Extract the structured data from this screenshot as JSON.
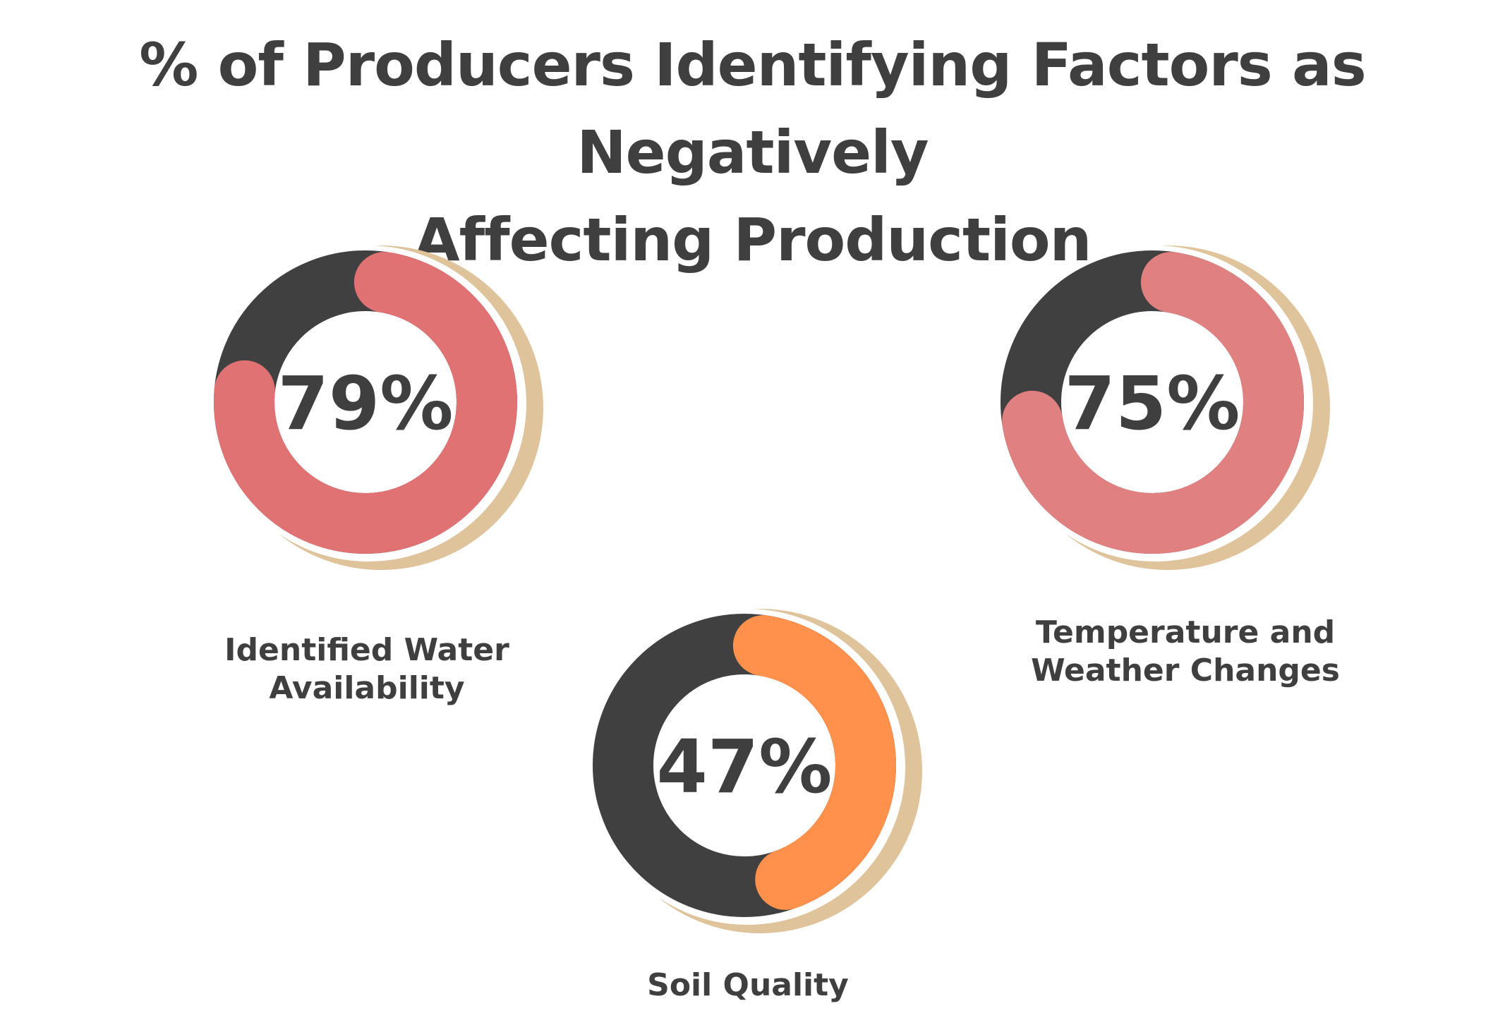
{
  "title_line1": "% of Producers Identifying Factors as Negatively",
  "title_line2": "Affecting Production",
  "chart_data": {
    "type": "donut",
    "title": "% of Producers Identifying Factors as Negatively Affecting Production",
    "items": [
      {
        "name": "Identified Water Availability",
        "label_lines": [
          "Identified Water",
          "Availability"
        ],
        "value": 79,
        "display": "79%",
        "color": "#e07274"
      },
      {
        "name": "Temperature and Weather Changes",
        "label_lines": [
          "Temperature and",
          "Weather Changes"
        ],
        "value": 75,
        "display": "75%",
        "color": "#e08080"
      },
      {
        "name": "Soil Quality",
        "label_lines": [
          "Soil Quality"
        ],
        "value": 47,
        "display": "47%",
        "color": "#ff914d"
      }
    ],
    "track_color": "#404040",
    "shadow_color": "#dfc39b",
    "text_color": "#3f3f3f"
  }
}
